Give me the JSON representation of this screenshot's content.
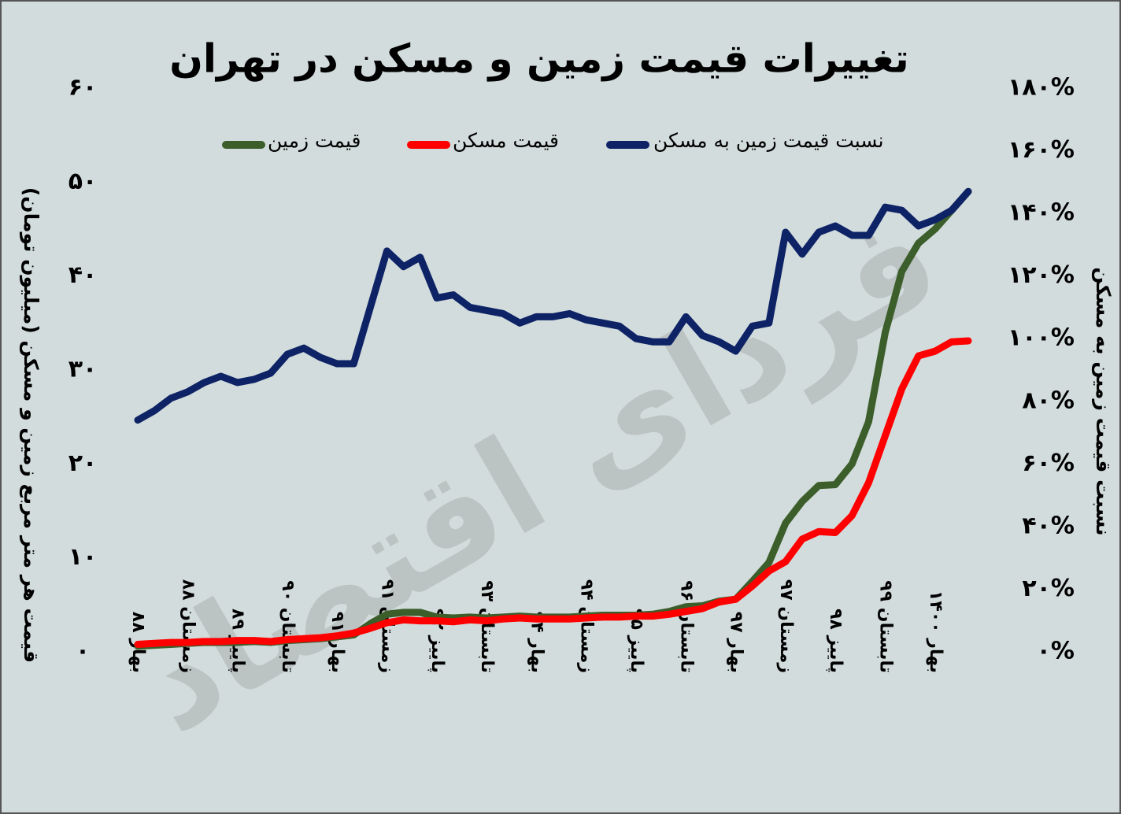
{
  "chart_data": {
    "type": "line",
    "title": "تغییرات قیمت زمین و مسکن در تهران",
    "y_label": "قیمت هر متر مربع زمین و مسکن (میلیون تومان)",
    "y2_label": "نسبت قیمت زمین به مسکن",
    "watermark": "فردای اقتصاد",
    "categories": [
      "بهار ۸۸",
      null,
      null,
      "زمستان ۸۸",
      null,
      null,
      "پاییز ۸۹",
      null,
      null,
      "تابستان ۹۰",
      null,
      null,
      "بهار ۹۱",
      null,
      null,
      "زمستان ۹۱",
      null,
      null,
      "پاییز ۹۲",
      null,
      null,
      "تابستان ۹۳",
      null,
      null,
      "بهار ۹۴",
      null,
      null,
      "زمستان ۹۴",
      null,
      null,
      "پاییز ۹۵",
      null,
      null,
      "تابستان ۹۶",
      null,
      null,
      "بهار ۹۷",
      null,
      null,
      "زمستان ۹۷",
      null,
      null,
      "پاییز ۹۸",
      null,
      null,
      "تابستان ۹۹",
      null,
      null,
      "بهار ۱۴۰۰",
      null,
      null
    ],
    "series": [
      {
        "name": "قیمت زمین",
        "color": "#3b5e2b",
        "values": [
          0.6,
          0.7,
          0.8,
          0.9,
          1.0,
          1.0,
          1.0,
          1.1,
          1.0,
          1.2,
          1.3,
          1.4,
          1.6,
          1.8,
          3.0,
          4.0,
          4.2,
          4.2,
          3.7,
          3.6,
          3.7,
          3.6,
          3.7,
          3.8,
          3.7,
          3.7,
          3.7,
          3.8,
          3.9,
          3.9,
          3.9,
          4.0,
          4.3,
          4.8,
          4.9,
          5.4,
          5.6,
          7.5,
          9.5,
          13.7,
          16.0,
          17.7,
          17.8,
          20.0,
          24.5,
          34.0,
          40.5,
          43.5,
          45.0,
          47.0,
          49.0
        ]
      },
      {
        "name": "قیمت مسکن",
        "color": "#ff0000",
        "values": [
          0.8,
          0.9,
          1.0,
          1.0,
          1.1,
          1.1,
          1.2,
          1.2,
          1.1,
          1.3,
          1.4,
          1.5,
          1.7,
          2.0,
          2.5,
          3.1,
          3.4,
          3.3,
          3.3,
          3.2,
          3.4,
          3.3,
          3.5,
          3.6,
          3.5,
          3.5,
          3.5,
          3.6,
          3.7,
          3.7,
          3.8,
          3.8,
          4.0,
          4.3,
          4.6,
          5.3,
          5.6,
          7.0,
          8.6,
          9.6,
          12.0,
          12.8,
          12.7,
          14.5,
          18.0,
          23.0,
          28.0,
          31.5,
          32.0,
          33.0,
          33.1
        ]
      },
      {
        "name": "نسبت قیمت زمین به مسکن",
        "color": "#0d2366",
        "axis": "y2",
        "values": [
          74,
          77,
          81,
          83,
          86,
          88,
          86,
          87,
          89,
          95,
          97,
          94,
          92,
          92,
          110,
          128,
          123,
          126,
          113,
          114,
          110,
          109,
          108,
          105,
          107,
          107,
          108,
          106,
          105,
          104,
          100,
          99,
          99,
          107,
          101,
          99,
          96,
          104,
          105,
          134,
          127,
          134,
          136,
          133,
          133,
          142,
          141,
          136,
          138,
          141,
          147
        ]
      }
    ],
    "ylim": [
      0,
      60
    ],
    "yticks": [
      {
        "value": 0,
        "label": "۰"
      },
      {
        "value": 10,
        "label": "۱۰"
      },
      {
        "value": 20,
        "label": "۲۰"
      },
      {
        "value": 30,
        "label": "۳۰"
      },
      {
        "value": 40,
        "label": "۴۰"
      },
      {
        "value": 50,
        "label": "۵۰"
      },
      {
        "value": 60,
        "label": "۶۰"
      }
    ],
    "y2lim": [
      0,
      180
    ],
    "y2ticks": [
      {
        "value": 0,
        "label": "۰%"
      },
      {
        "value": 20,
        "label": "۲۰%"
      },
      {
        "value": 40,
        "label": "۴۰%"
      },
      {
        "value": 60,
        "label": "۶۰%"
      },
      {
        "value": 80,
        "label": "۸۰%"
      },
      {
        "value": 100,
        "label": "۱۰۰%"
      },
      {
        "value": 120,
        "label": "۱۲۰%"
      },
      {
        "value": 140,
        "label": "۱۴۰%"
      },
      {
        "value": 160,
        "label": "۱۶۰%"
      },
      {
        "value": 180,
        "label": "۱۸۰%"
      }
    ],
    "grid": false,
    "legend": "top"
  }
}
